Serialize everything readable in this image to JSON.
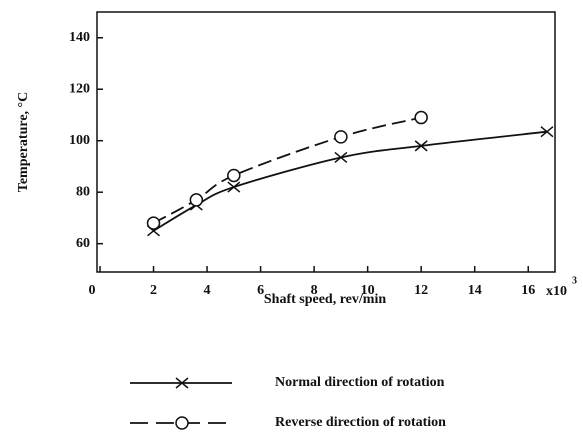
{
  "chart_data": {
    "type": "line",
    "xlabel": "Shaft speed, rev/min",
    "ylabel": "Temperature, °C",
    "x_multiplier": {
      "base": "x10",
      "exponent": "3"
    },
    "xlim": [
      0,
      17
    ],
    "xticks": [
      0,
      2,
      4,
      6,
      8,
      10,
      12,
      14,
      16
    ],
    "ylim": [
      49,
      150
    ],
    "yticks": [
      60,
      80,
      100,
      120,
      140
    ],
    "grid": false,
    "legend_position": "bottom",
    "series": [
      {
        "name": "Normal direction of rotation",
        "color": "#111111",
        "marker": "x",
        "dash": "solid",
        "x": [
          2,
          3.6,
          5,
          9,
          12,
          16.7
        ],
        "values": [
          65,
          75,
          82,
          93.5,
          98,
          103.5
        ]
      },
      {
        "name": "Reverse direction of rotation",
        "color": "#111111",
        "marker": "o",
        "dash": "dashed",
        "x": [
          2,
          3.6,
          5,
          9,
          12
        ],
        "values": [
          68,
          77,
          86.5,
          101.5,
          109
        ]
      }
    ]
  }
}
